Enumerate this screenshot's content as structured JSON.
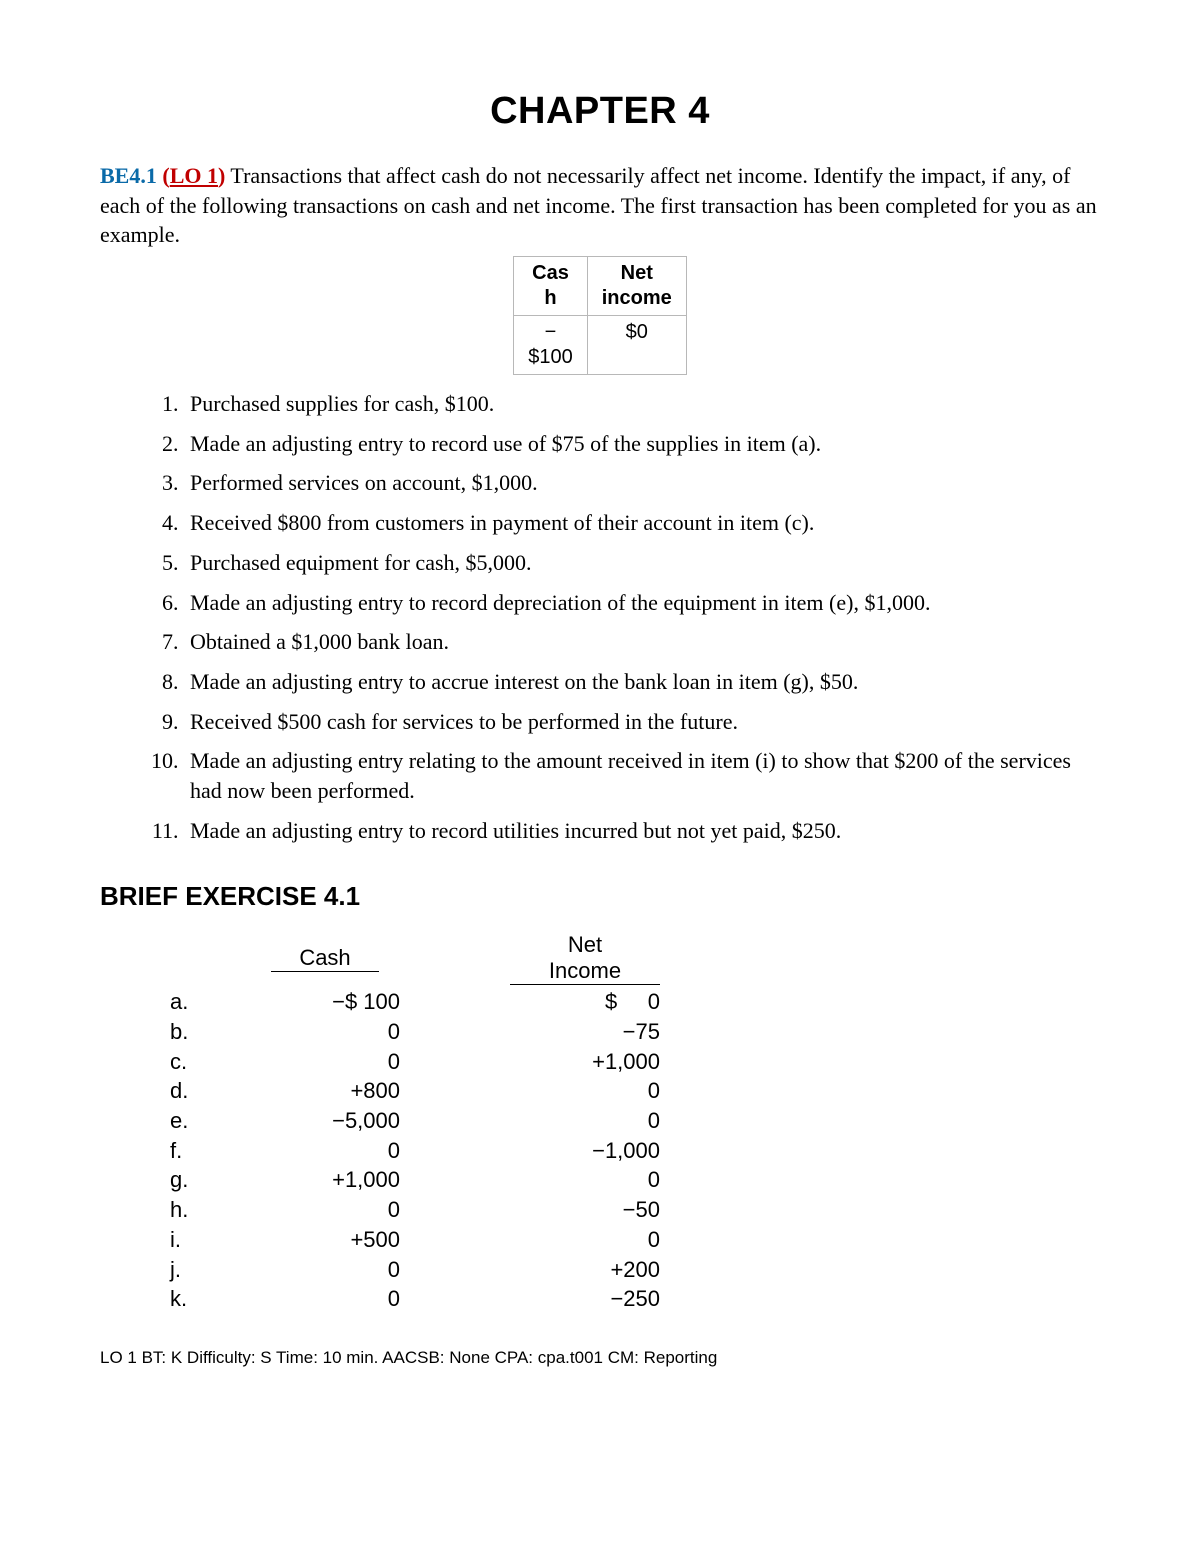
{
  "chapter_title": "CHAPTER 4",
  "problem": {
    "be_label": "BE4.1",
    "lo_open": "(",
    "lo_label": "LO 1",
    "lo_close": ")",
    "intro_text": " Transactions that affect cash do not necessarily affect net income. Identify the impact, if any, of each of the following transactions on cash and net income. The first transaction has been completed for you as an example."
  },
  "example_table": {
    "headers": {
      "cash": "Cas\nh",
      "net_income": "Net\nincome"
    },
    "row": {
      "cash": "−\n$100",
      "net_income": "$0"
    }
  },
  "transactions": [
    "Purchased supplies for cash, $100.",
    "Made an adjusting entry to record use of $75 of the supplies in item (a).",
    "Performed services on account, $1,000.",
    "Received $800 from customers in payment of their account in item (c).",
    "Purchased equipment for cash, $5,000.",
    "Made an adjusting entry to record depreciation of the equipment in item (e), $1,000.",
    "Obtained a $1,000 bank loan.",
    "Made an adjusting entry to accrue interest on the bank loan in item (g), $50.",
    "Received $500 cash for services to be performed in the future.",
    "Made an adjusting entry relating to the amount received in item (i) to show that $200 of the services had now been performed.",
    "Made an adjusting entry to record utilities incurred but not yet paid, $250."
  ],
  "brief_title": "BRIEF EXERCISE 4.1",
  "answers": {
    "headers": {
      "cash": "Cash",
      "net_income": "Net Income"
    },
    "rows": [
      {
        "label": "a.",
        "cash": "−$ 100",
        "ni": "$     0"
      },
      {
        "label": "b.",
        "cash": "0",
        "ni": "−75"
      },
      {
        "label": "c.",
        "cash": "0",
        "ni": "+1,000"
      },
      {
        "label": "d.",
        "cash": "+800",
        "ni": "0"
      },
      {
        "label": "e.",
        "cash": "−5,000",
        "ni": "0"
      },
      {
        "label": "f.",
        "cash": "0",
        "ni": "−1,000"
      },
      {
        "label": "g.",
        "cash": "+1,000",
        "ni": "0"
      },
      {
        "label": "h.",
        "cash": "0",
        "ni": "−50"
      },
      {
        "label": "i.",
        "cash": "+500",
        "ni": "0"
      },
      {
        "label": "j.",
        "cash": "0",
        "ni": "+200"
      },
      {
        "label": "k.",
        "cash": "0",
        "ni": "−250"
      }
    ]
  },
  "footer": "LO 1  BT: K  Difficulty: S  Time: 10 min.  AACSB: None  CPA: cpa.t001  CM: Reporting"
}
